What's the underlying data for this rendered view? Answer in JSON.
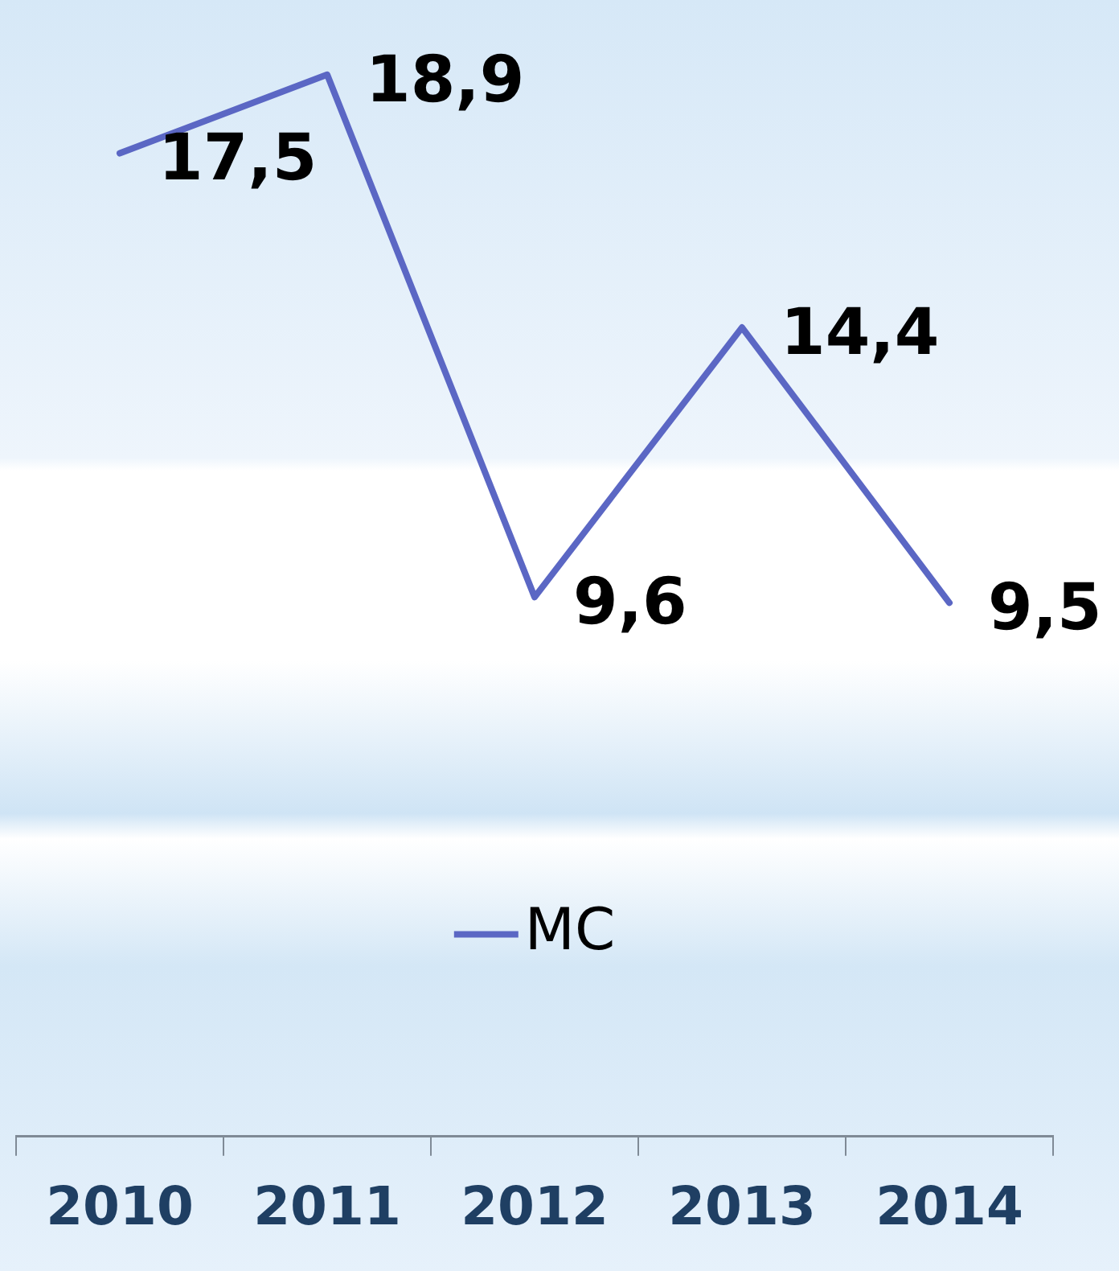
{
  "chart_data": {
    "type": "line",
    "categories": [
      "2010",
      "2011",
      "2012",
      "2013",
      "2014"
    ],
    "series": [
      {
        "name": "MC",
        "color": "#5b67c4",
        "values": [
          17.5,
          18.9,
          9.6,
          14.4,
          9.5
        ],
        "value_labels": [
          "17,5",
          "18,9",
          "9,6",
          "14,4",
          "9,5"
        ]
      }
    ],
    "legend": "bottom",
    "grid": false,
    "marker": "none",
    "line_style": "solid",
    "tick_labels": "x"
  }
}
